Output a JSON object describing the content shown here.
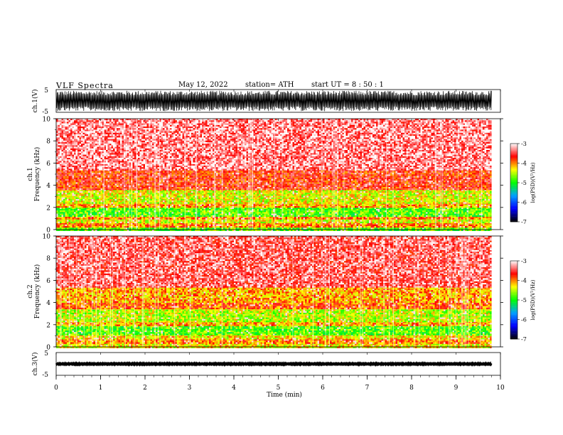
{
  "header": {
    "title": "VLF  Spectra",
    "date": "May 12, 2022",
    "station": "station= ATH",
    "start_ut": "start  UT  =   8  : 50 : 1"
  },
  "colors": {
    "spectrogram_scale": [
      "#000000",
      "#0000ff",
      "#00a0ff",
      "#00ff00",
      "#ffff00",
      "#ff0000",
      "#ffffff"
    ],
    "waveform": "#000000"
  },
  "chart_data": [
    {
      "type": "line",
      "name": "ch1-waveform",
      "ylabel": "ch.1(V)",
      "ylim": [
        -5,
        5
      ],
      "yticks": [
        "5",
        "-5"
      ],
      "xlim": [
        0,
        10
      ],
      "amplitude_range": [
        -4.5,
        4.5
      ],
      "grid": false
    },
    {
      "type": "heatmap",
      "name": "ch1-spectrogram",
      "ylabel": "ch.1\nFrequency (kHz)",
      "ylim": [
        0,
        10
      ],
      "yticks": [
        "0",
        "2",
        "4",
        "6",
        "8",
        "10"
      ],
      "xlim": [
        0,
        9.8
      ],
      "colorbar": {
        "label": "log(PSD)(V²/Hz)",
        "range": [
          -7,
          -3
        ],
        "ticks": [
          "-3",
          "-4",
          "-5",
          "-6",
          "-7"
        ]
      },
      "bands_khz_logpsd": [
        [
          0.0,
          0.3,
          -4.8
        ],
        [
          0.3,
          0.6,
          -4.0
        ],
        [
          0.6,
          1.0,
          -4.4
        ],
        [
          1.0,
          1.2,
          -4.0
        ],
        [
          1.2,
          2.0,
          -4.8
        ],
        [
          2.0,
          2.4,
          -4.1
        ],
        [
          2.4,
          3.6,
          -4.4
        ],
        [
          3.6,
          5.4,
          -3.7
        ],
        [
          5.4,
          10.0,
          -3.3
        ]
      ]
    },
    {
      "type": "heatmap",
      "name": "ch2-spectrogram",
      "ylabel": "ch.2\nFrequency (kHz)",
      "ylim": [
        0,
        10
      ],
      "yticks": [
        "0",
        "2",
        "4",
        "6",
        "8",
        "10"
      ],
      "xlim": [
        0,
        9.8
      ],
      "colorbar": {
        "label": "log(PSD)(V²/Hz)",
        "range": [
          -7,
          -3
        ],
        "ticks": [
          "-3",
          "-4",
          "-5",
          "-6",
          "-7"
        ]
      },
      "bands_khz_logpsd": [
        [
          0.0,
          0.3,
          -4.3
        ],
        [
          0.3,
          0.7,
          -4.0
        ],
        [
          0.7,
          1.1,
          -4.3
        ],
        [
          1.1,
          1.9,
          -4.8
        ],
        [
          1.9,
          2.3,
          -4.1
        ],
        [
          2.3,
          3.5,
          -4.5
        ],
        [
          3.5,
          4.1,
          -3.9
        ],
        [
          4.1,
          5.4,
          -4.1
        ],
        [
          5.4,
          10.0,
          -3.4
        ]
      ]
    },
    {
      "type": "line",
      "name": "ch3-waveform",
      "ylabel": "ch.3(V)",
      "ylim": [
        -5,
        5
      ],
      "yticks": [
        "5",
        "-5"
      ],
      "xlim": [
        0,
        9.8
      ],
      "amplitude_range": [
        -0.3,
        0.3
      ],
      "xlabel": "Time  (min)",
      "xticks": [
        "0",
        "1",
        "2",
        "3",
        "4",
        "5",
        "6",
        "7",
        "8",
        "9",
        "10"
      ],
      "grid": false
    }
  ]
}
